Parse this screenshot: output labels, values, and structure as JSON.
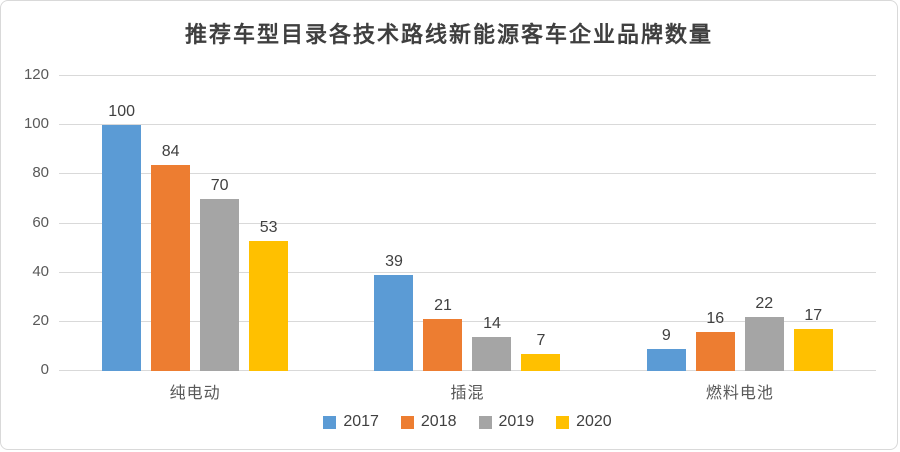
{
  "chart_data": {
    "type": "bar",
    "title": "推荐车型目录各技术路线新能源客车企业品牌数量",
    "categories": [
      "纯电动",
      "插混",
      "燃料电池"
    ],
    "series": [
      {
        "name": "2017",
        "color": "#5b9bd5",
        "values": [
          100,
          39,
          9
        ]
      },
      {
        "name": "2018",
        "color": "#ed7d31",
        "values": [
          84,
          21,
          16
        ]
      },
      {
        "name": "2019",
        "color": "#a5a5a5",
        "values": [
          70,
          14,
          22
        ]
      },
      {
        "name": "2020",
        "color": "#ffc000",
        "values": [
          53,
          7,
          17
        ]
      }
    ],
    "xlabel": "",
    "ylabel": "",
    "ylim": [
      0,
      120
    ],
    "yticks": [
      0,
      20,
      40,
      60,
      80,
      100,
      120
    ],
    "grid": true,
    "data_labels": true,
    "legend_position": "bottom"
  },
  "colors": {
    "gridline": "#d9d9d9",
    "axis_text": "#595959",
    "value_label_text": "#404040",
    "title_text": "#3f3f3f",
    "frame_border": "#d9d9d9",
    "background": "#ffffff"
  }
}
